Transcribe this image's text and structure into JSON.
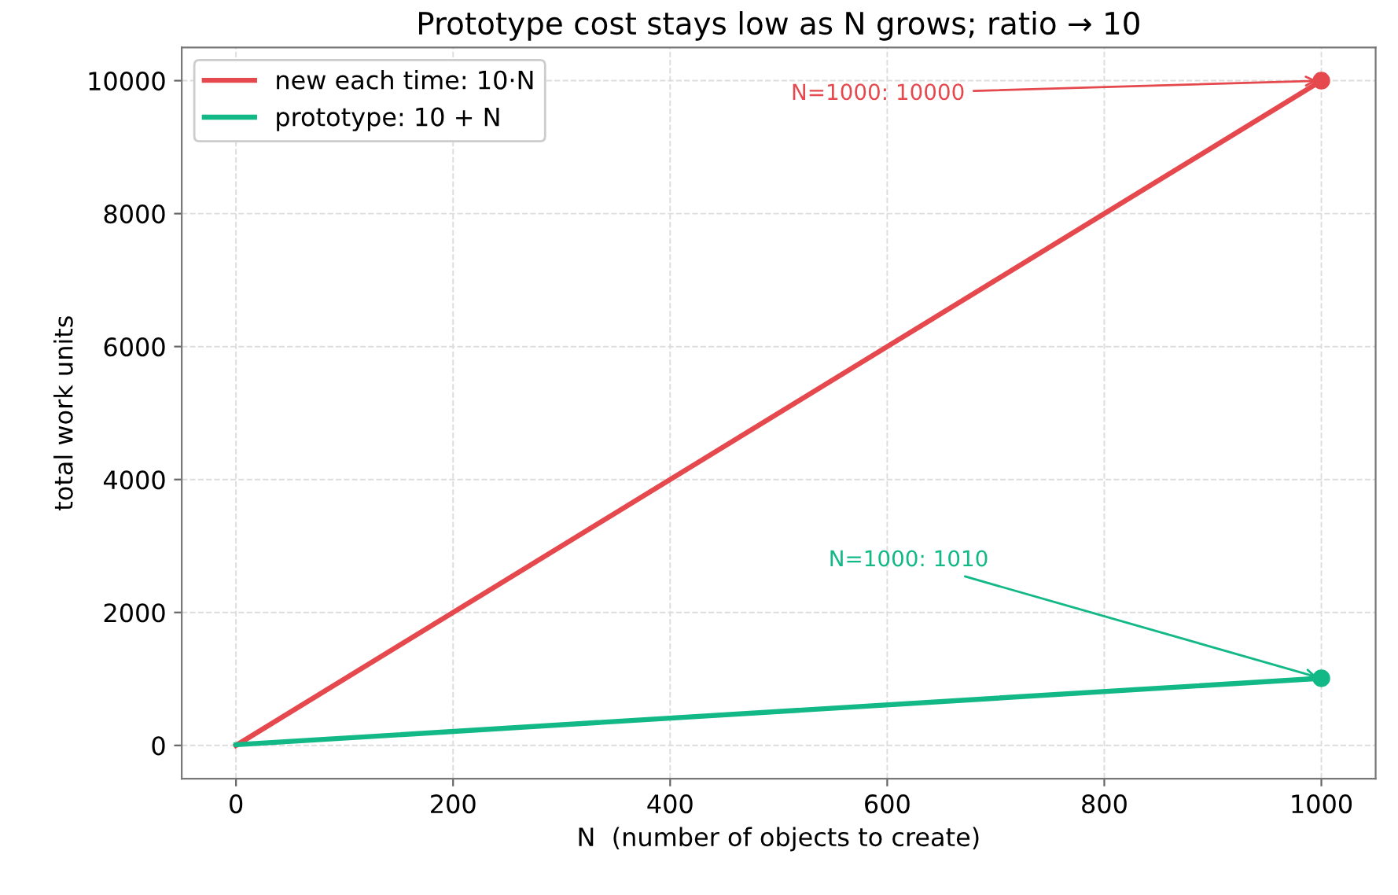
{
  "chart_data": {
    "type": "line",
    "title": "Prototype cost stays low as N grows; ratio → 10",
    "xlabel": "N  (number of objects to create)",
    "ylabel": "total work units",
    "series": [
      {
        "name": "new each time: 10·N",
        "color": "#e5484d",
        "values": [
          0,
          10000
        ]
      },
      {
        "name": "prototype: 10 + N",
        "color": "#12b886",
        "values": [
          10,
          1010
        ]
      },
      {
        "type": "scatter",
        "color": "#e5484d",
        "x": [
          1000
        ],
        "values": [
          10000
        ],
        "marker": "circle"
      },
      {
        "type": "scatter",
        "color": "#12b886",
        "x": [
          1000
        ],
        "values": [
          1010
        ],
        "marker": "circle"
      }
    ],
    "annotations": [
      {
        "text": "N=1000: 10000",
        "x": 1000,
        "y": 10000
      },
      {
        "text": "N=1000: 1010",
        "x": 1000,
        "y": 1010
      }
    ],
    "x": [
      0,
      1000
    ],
    "xlim": [
      -50,
      1050
    ],
    "ylim": [
      -500,
      10500
    ],
    "xticks": [
      0,
      200,
      400,
      600,
      800,
      1000
    ],
    "yticks": [
      0,
      2000,
      4000,
      6000,
      8000,
      10000
    ],
    "grid": true,
    "legend": "top left"
  }
}
